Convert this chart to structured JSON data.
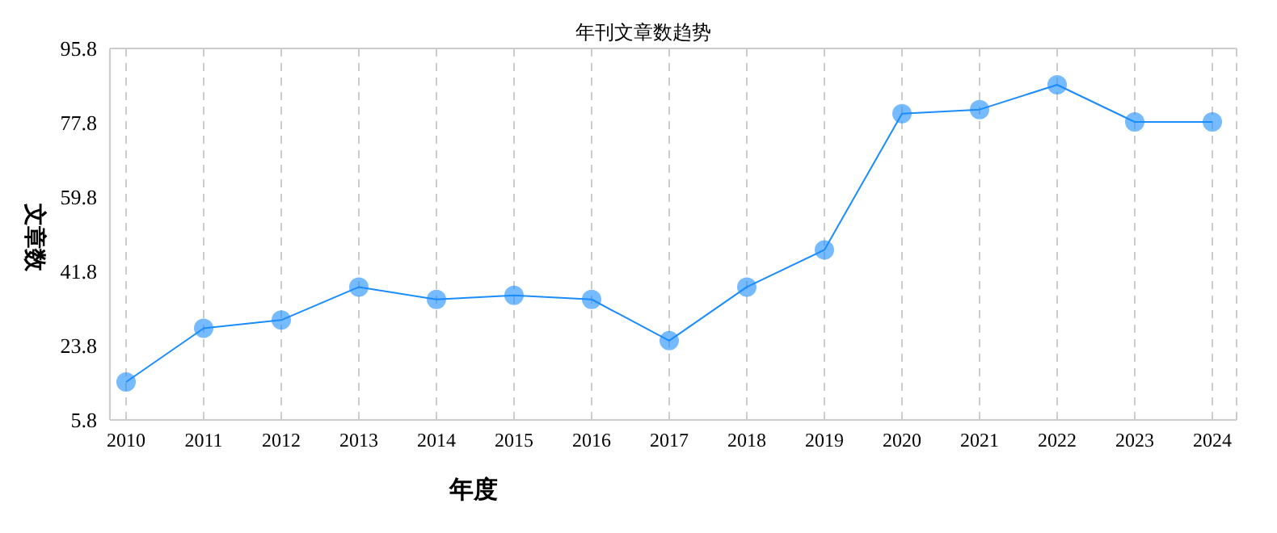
{
  "chart_data": {
    "type": "line",
    "title": "年刊文章数趋势",
    "xlabel": "年度",
    "ylabel": "文章数",
    "categories": [
      "2010",
      "2011",
      "2012",
      "2013",
      "2014",
      "2015",
      "2016",
      "2017",
      "2018",
      "2019",
      "2020",
      "2021",
      "2022",
      "2023",
      "2024"
    ],
    "series": [
      {
        "color": "#1a8cff",
        "values": [
          15,
          28,
          30,
          38,
          35,
          36,
          35,
          25,
          38,
          47,
          80,
          81,
          87,
          78,
          78
        ]
      }
    ],
    "ylim": [
      5.8,
      95.8
    ],
    "yticks": [
      5.8,
      23.8,
      41.8,
      59.8,
      77.8,
      95.8
    ],
    "grid": true,
    "marker": "circle",
    "line_style": "solid"
  }
}
